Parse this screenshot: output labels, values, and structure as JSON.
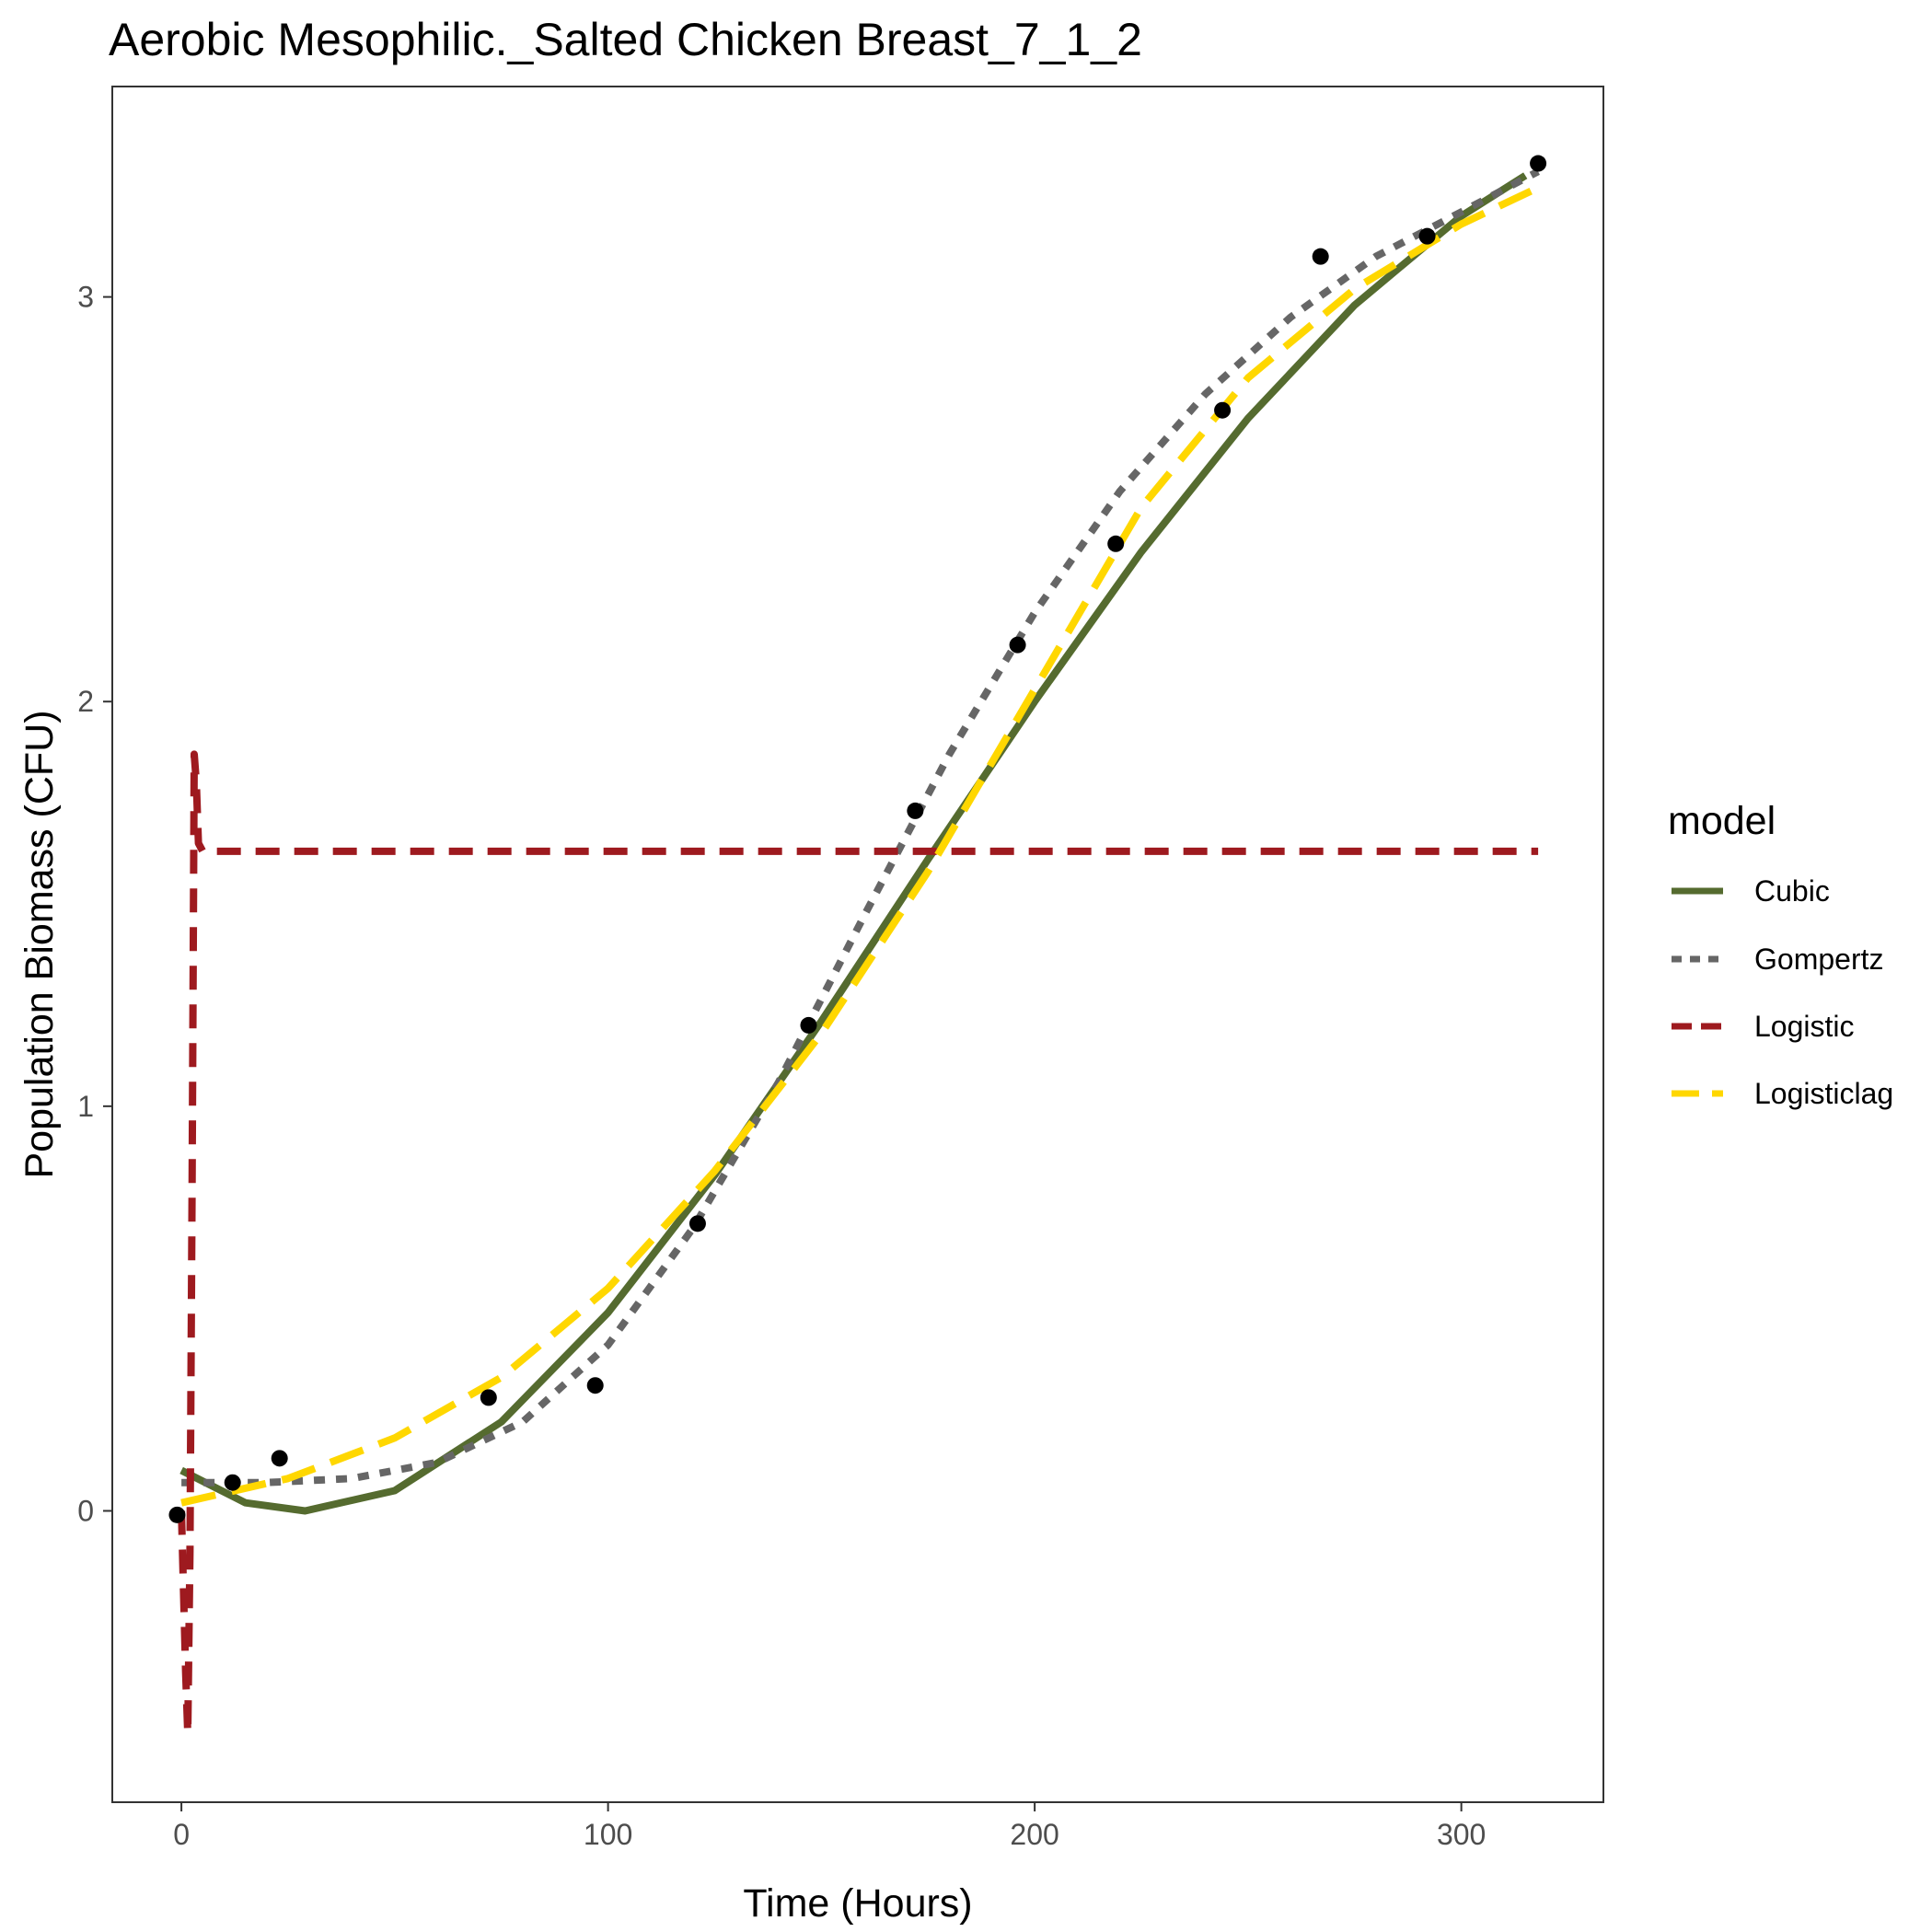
{
  "chart_data": {
    "type": "line",
    "title": "Aerobic Mesophilic._Salted Chicken Breast_7_1_2",
    "xlabel": "Time (Hours)",
    "ylabel": "Population Biomass (CFU)",
    "xlim": [
      -16.2,
      333.3
    ],
    "ylim": [
      -0.72,
      3.52
    ],
    "x_ticks": [
      0,
      100,
      200,
      300
    ],
    "y_ticks": [
      0,
      1,
      2,
      3
    ],
    "x_tick_labels": [
      "0",
      "100",
      "200",
      "300"
    ],
    "y_tick_labels": [
      "0",
      "1",
      "2",
      "3"
    ],
    "grid": false,
    "legend": {
      "title": "model",
      "placement": "right",
      "entries": [
        "Cubic",
        "Gompertz",
        "Logistic",
        "Logisticlag"
      ]
    },
    "points": {
      "x": [
        -1,
        12,
        23,
        72,
        97,
        121,
        147,
        172,
        196,
        219,
        244,
        267,
        292,
        318
      ],
      "y": [
        -0.01,
        0.07,
        0.13,
        0.28,
        0.31,
        0.71,
        1.2,
        1.73,
        2.14,
        2.39,
        2.72,
        3.1,
        3.15,
        3.33
      ]
    },
    "series": [
      {
        "name": "Cubic",
        "color": "#556b2f",
        "dash": "solid",
        "x": [
          0,
          15,
          29,
          50,
          75,
          100,
          125,
          150,
          175,
          200,
          225,
          250,
          275,
          300,
          315
        ],
        "y": [
          0.1,
          0.02,
          0.0,
          0.05,
          0.22,
          0.49,
          0.83,
          1.21,
          1.61,
          2.0,
          2.37,
          2.7,
          2.98,
          3.2,
          3.3
        ]
      },
      {
        "name": "Gompertz",
        "color": "#666666",
        "dash": "dotted",
        "x": [
          0,
          20,
          40,
          60,
          80,
          100,
          120,
          140,
          160,
          180,
          200,
          220,
          240,
          260,
          280,
          300,
          318
        ],
        "y": [
          0.07,
          0.07,
          0.08,
          0.12,
          0.22,
          0.41,
          0.7,
          1.06,
          1.47,
          1.87,
          2.22,
          2.52,
          2.76,
          2.95,
          3.1,
          3.21,
          3.31
        ]
      },
      {
        "name": "Logistic",
        "color": "#9e1a1f",
        "dash": "dashed",
        "x": [
          0,
          0.5,
          1,
          1.5,
          2,
          2.5,
          3,
          3.5,
          4,
          5,
          8,
          20,
          100,
          200,
          318
        ],
        "y": [
          0.0,
          -0.2,
          -0.4,
          -0.55,
          -0.1,
          0.8,
          1.87,
          1.8,
          1.65,
          1.63,
          1.63,
          1.63,
          1.63,
          1.63,
          1.63
        ]
      },
      {
        "name": "Logisticlag",
        "color": "#ffd700",
        "dash": "longdash",
        "x": [
          0,
          25,
          50,
          75,
          100,
          125,
          150,
          175,
          200,
          225,
          250,
          275,
          300,
          318
        ],
        "y": [
          0.02,
          0.08,
          0.18,
          0.33,
          0.55,
          0.84,
          1.18,
          1.58,
          2.03,
          2.48,
          2.8,
          3.02,
          3.18,
          3.27
        ]
      }
    ]
  }
}
